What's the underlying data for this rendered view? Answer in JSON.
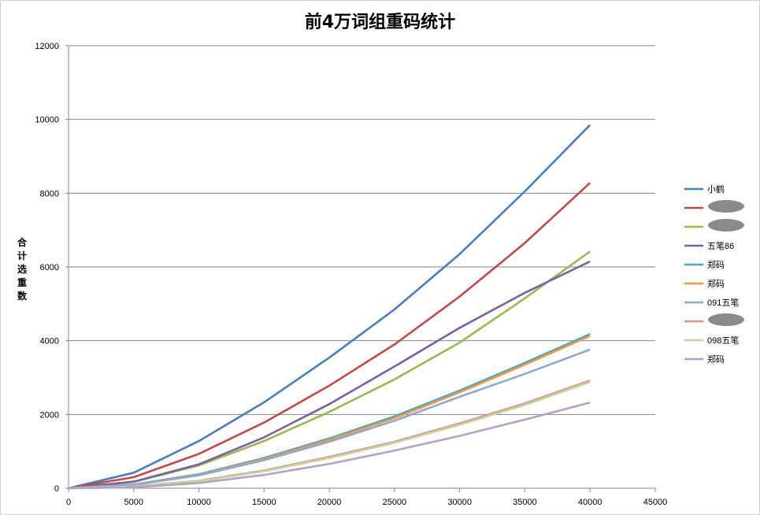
{
  "chart_data": {
    "type": "line",
    "title": "前4万词组重码统计",
    "xlabel": "",
    "ylabel": "合计选重数",
    "xlim": [
      0,
      45000
    ],
    "ylim": [
      0,
      12000
    ],
    "x_ticks": [
      "0",
      "5000",
      "10000",
      "15000",
      "20000",
      "25000",
      "30000",
      "35000",
      "40000",
      "45000"
    ],
    "y_ticks": [
      "0",
      "2000",
      "4000",
      "6000",
      "8000",
      "10000",
      "12000"
    ],
    "grid": "horizontal",
    "legend_position": "right",
    "series": [
      {
        "name": "小鹤",
        "color": "#4a7ebb",
        "points": [
          [
            0,
            0
          ],
          [
            5000,
            420
          ],
          [
            10000,
            1280
          ],
          [
            15000,
            2330
          ],
          [
            20000,
            3540
          ],
          [
            25000,
            4850
          ],
          [
            30000,
            6350
          ],
          [
            35000,
            8050
          ],
          [
            40000,
            9850
          ]
        ]
      },
      {
        "name": "",
        "color": "#be4b48",
        "points": [
          [
            0,
            0
          ],
          [
            5000,
            300
          ],
          [
            10000,
            930
          ],
          [
            15000,
            1780
          ],
          [
            20000,
            2780
          ],
          [
            25000,
            3900
          ],
          [
            30000,
            5200
          ],
          [
            35000,
            6650
          ],
          [
            40000,
            8280
          ]
        ]
      },
      {
        "name": "",
        "color": "#98b954",
        "points": [
          [
            0,
            0
          ],
          [
            5000,
            170
          ],
          [
            10000,
            620
          ],
          [
            15000,
            1280
          ],
          [
            20000,
            2070
          ],
          [
            25000,
            2950
          ],
          [
            30000,
            3950
          ],
          [
            35000,
            5150
          ],
          [
            40000,
            6420
          ]
        ]
      },
      {
        "name": "五笔86",
        "color": "#7d60a0",
        "points": [
          [
            0,
            0
          ],
          [
            5000,
            180
          ],
          [
            10000,
            650
          ],
          [
            15000,
            1380
          ],
          [
            20000,
            2280
          ],
          [
            25000,
            3300
          ],
          [
            30000,
            4350
          ],
          [
            35000,
            5300
          ],
          [
            40000,
            6150
          ]
        ]
      },
      {
        "name": "郑码",
        "color": "#46aac5",
        "points": [
          [
            0,
            0
          ],
          [
            5000,
            100
          ],
          [
            10000,
            380
          ],
          [
            15000,
            820
          ],
          [
            20000,
            1350
          ],
          [
            25000,
            1950
          ],
          [
            30000,
            2650
          ],
          [
            35000,
            3400
          ],
          [
            40000,
            4180
          ]
        ]
      },
      {
        "name": "郑码",
        "color": "#f79646",
        "points": [
          [
            0,
            0
          ],
          [
            5000,
            95
          ],
          [
            10000,
            360
          ],
          [
            15000,
            790
          ],
          [
            20000,
            1310
          ],
          [
            25000,
            1900
          ],
          [
            30000,
            2600
          ],
          [
            35000,
            3350
          ],
          [
            40000,
            4130
          ]
        ]
      },
      {
        "name": "091五笔",
        "color": "#8fa8cd",
        "points": [
          [
            0,
            0
          ],
          [
            5000,
            90
          ],
          [
            10000,
            350
          ],
          [
            15000,
            760
          ],
          [
            20000,
            1260
          ],
          [
            25000,
            1830
          ],
          [
            30000,
            2480
          ],
          [
            35000,
            3100
          ],
          [
            40000,
            3760
          ]
        ]
      },
      {
        "name": "",
        "color": "#d99694",
        "points": [
          [
            0,
            0
          ],
          [
            5000,
            50
          ],
          [
            10000,
            200
          ],
          [
            15000,
            480
          ],
          [
            20000,
            850
          ],
          [
            25000,
            1260
          ],
          [
            30000,
            1760
          ],
          [
            35000,
            2300
          ],
          [
            40000,
            2920
          ]
        ]
      },
      {
        "name": "098五笔",
        "color": "#c3d69b",
        "points": [
          [
            0,
            0
          ],
          [
            5000,
            45
          ],
          [
            10000,
            190
          ],
          [
            15000,
            460
          ],
          [
            20000,
            820
          ],
          [
            25000,
            1230
          ],
          [
            30000,
            1720
          ],
          [
            35000,
            2260
          ],
          [
            40000,
            2880
          ]
        ]
      },
      {
        "name": "郑码",
        "color": "#b3a2c7",
        "points": [
          [
            0,
            0
          ],
          [
            5000,
            25
          ],
          [
            10000,
            140
          ],
          [
            15000,
            360
          ],
          [
            20000,
            660
          ],
          [
            25000,
            1020
          ],
          [
            30000,
            1420
          ],
          [
            35000,
            1860
          ],
          [
            40000,
            2320
          ]
        ]
      }
    ]
  }
}
